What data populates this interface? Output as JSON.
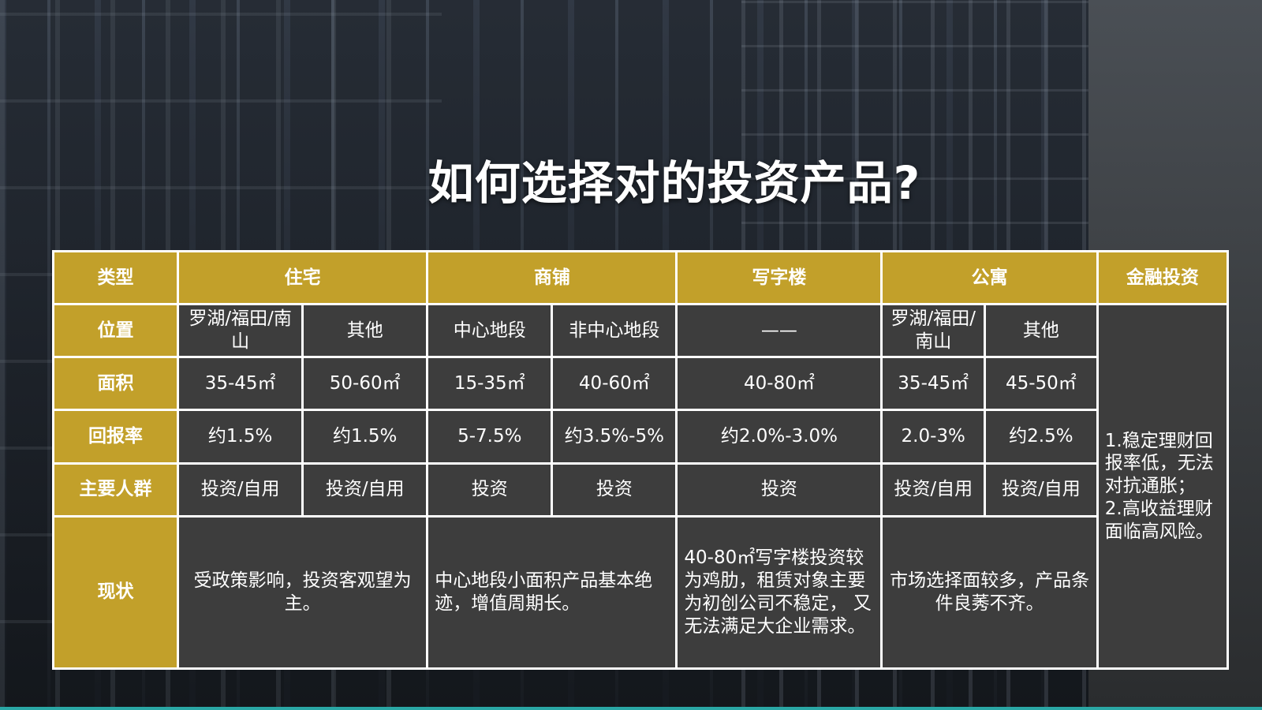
{
  "title": "如何选择对的投资产品?",
  "table": {
    "headers": {
      "type": "类型",
      "residential": "住宅",
      "shop": "商铺",
      "office": "写字楼",
      "apartment": "公寓",
      "finance": "金融投资"
    },
    "row_labels": {
      "location": "位置",
      "area": "面积",
      "return_rate": "回报率",
      "main_group": "主要人群",
      "status": "现状"
    },
    "location": [
      "罗湖/福田/南山",
      "其他",
      "中心地段",
      "非中心地段",
      "——",
      "罗湖/福田/南山",
      "其他"
    ],
    "area": [
      "35-45㎡",
      "50-60㎡",
      "15-35㎡",
      "40-60㎡",
      "40-80㎡",
      "35-45㎡",
      "45-50㎡"
    ],
    "return_rate": [
      "约1.5%",
      "约1.5%",
      "5-7.5%",
      "约3.5%-5%",
      "约2.0%-3.0%",
      "2.0-3%",
      "约2.5%"
    ],
    "main_group": [
      "投资/自用",
      "投资/自用",
      "投资",
      "投资",
      "投资",
      "投资/自用",
      "投资/自用"
    ],
    "status": {
      "residential": "受政策影响，投资客观望为主。",
      "shop": "中心地段小面积产品基本绝迹，增值周期长。",
      "office": "40-80㎡写字楼投资较为鸡肋，租赁对象主要为初创公司不稳定， 又无法满足大企业需求。",
      "apartment": "市场选择面较多，产品条件良莠不齐。"
    },
    "finance_note": "1.稳定理财回报率低，无法对抗通胀；\n2.高收益理财面临高风险。"
  },
  "colors": {
    "header_gold": "#c2a02a",
    "cell_dark": "#3d3d3d",
    "border_white": "#ffffff",
    "accent_teal": "#2aa7a5"
  }
}
